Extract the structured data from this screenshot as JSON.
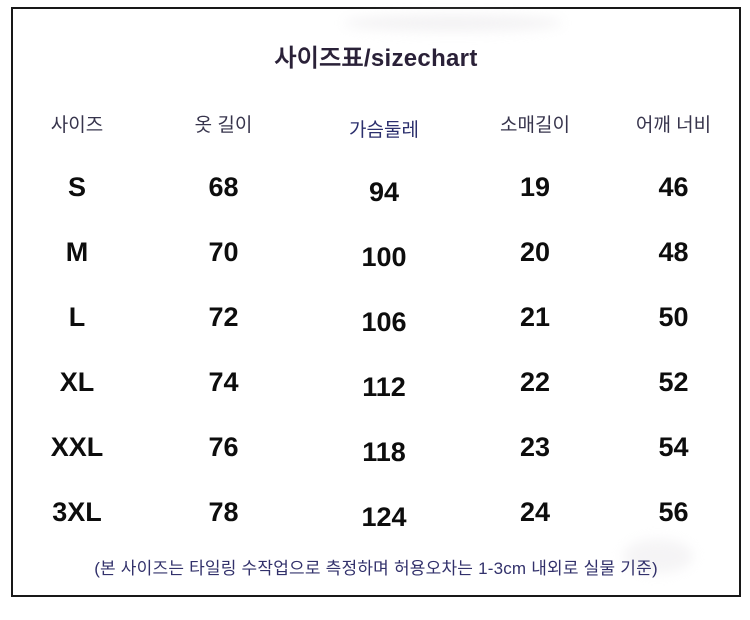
{
  "chart_data": {
    "type": "table",
    "title": "사이즈표/sizechart",
    "columns": [
      "사이즈",
      "옷 길이",
      "가슴둘레",
      "소매길이",
      "어깨 너비"
    ],
    "rows": [
      {
        "size": "S",
        "values": [
          "68",
          "94",
          "19",
          "46"
        ]
      },
      {
        "size": "M",
        "values": [
          "70",
          "100",
          "20",
          "48"
        ]
      },
      {
        "size": "L",
        "values": [
          "72",
          "106",
          "21",
          "50"
        ]
      },
      {
        "size": "XL",
        "values": [
          "74",
          "112",
          "22",
          "52"
        ]
      },
      {
        "size": "XXL",
        "values": [
          "76",
          "118",
          "23",
          "54"
        ]
      },
      {
        "size": "3XL",
        "values": [
          "78",
          "124",
          "24",
          "56"
        ]
      }
    ],
    "footnote": "(본 사이즈는 타일링 수작업으로 측정하며 허용오차는 1-3cm 내외로 실물 기준)",
    "layout": "column 3 (가슴둘레) header shown in navy accent; grid off; plain white table with outer black border"
  },
  "colors": {
    "background": "#ffffff",
    "border": "#181818",
    "title_text": "#2a2138",
    "header_text": "#37344c",
    "header_accent": "#2b2f6d",
    "value_text": "#0d0d0d",
    "footnote_text": "#32316b"
  }
}
